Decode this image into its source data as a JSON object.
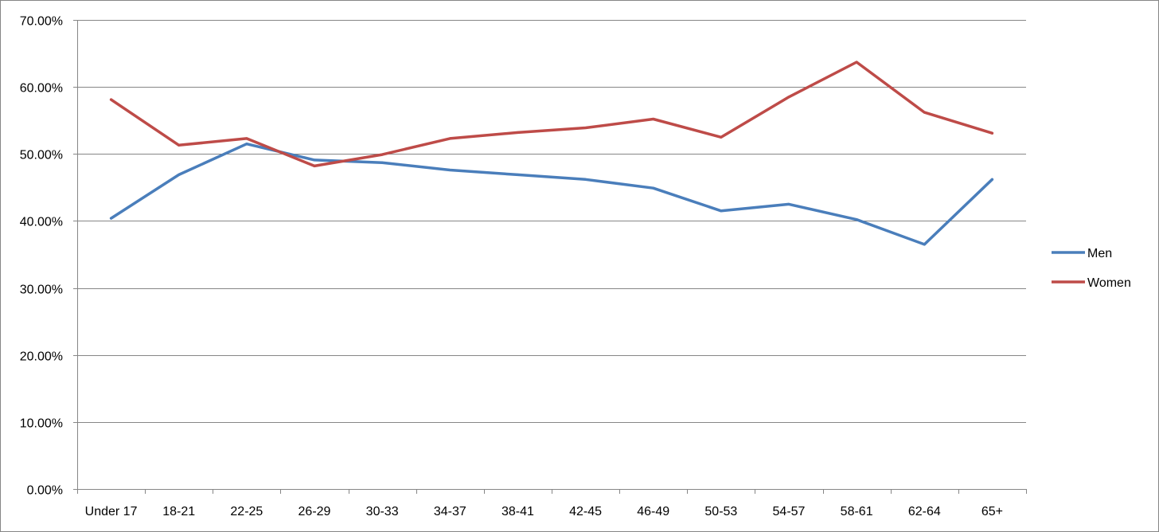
{
  "chart_data": {
    "type": "line",
    "title": "",
    "xlabel": "",
    "ylabel": "",
    "categories": [
      "Under 17",
      "18-21",
      "22-25",
      "26-29",
      "30-33",
      "34-37",
      "38-41",
      "42-45",
      "46-49",
      "50-53",
      "54-57",
      "58-61",
      "62-64",
      "65+"
    ],
    "series": [
      {
        "name": "Men",
        "color": "#4A7EBB",
        "values": [
          40.4,
          46.9,
          51.5,
          49.1,
          48.7,
          47.6,
          46.9,
          46.2,
          44.9,
          41.5,
          42.5,
          40.2,
          36.5,
          46.2
        ]
      },
      {
        "name": "Women",
        "color": "#BE4B48",
        "values": [
          58.1,
          51.3,
          52.3,
          48.2,
          49.9,
          52.3,
          53.2,
          53.9,
          55.2,
          52.5,
          58.5,
          63.7,
          56.2,
          53.1
        ]
      }
    ],
    "ylim": [
      0,
      70
    ],
    "yticks": [
      "0.00%",
      "10.00%",
      "20.00%",
      "30.00%",
      "40.00%",
      "50.00%",
      "60.00%",
      "70.00%"
    ],
    "grid": true,
    "legend": "right"
  }
}
